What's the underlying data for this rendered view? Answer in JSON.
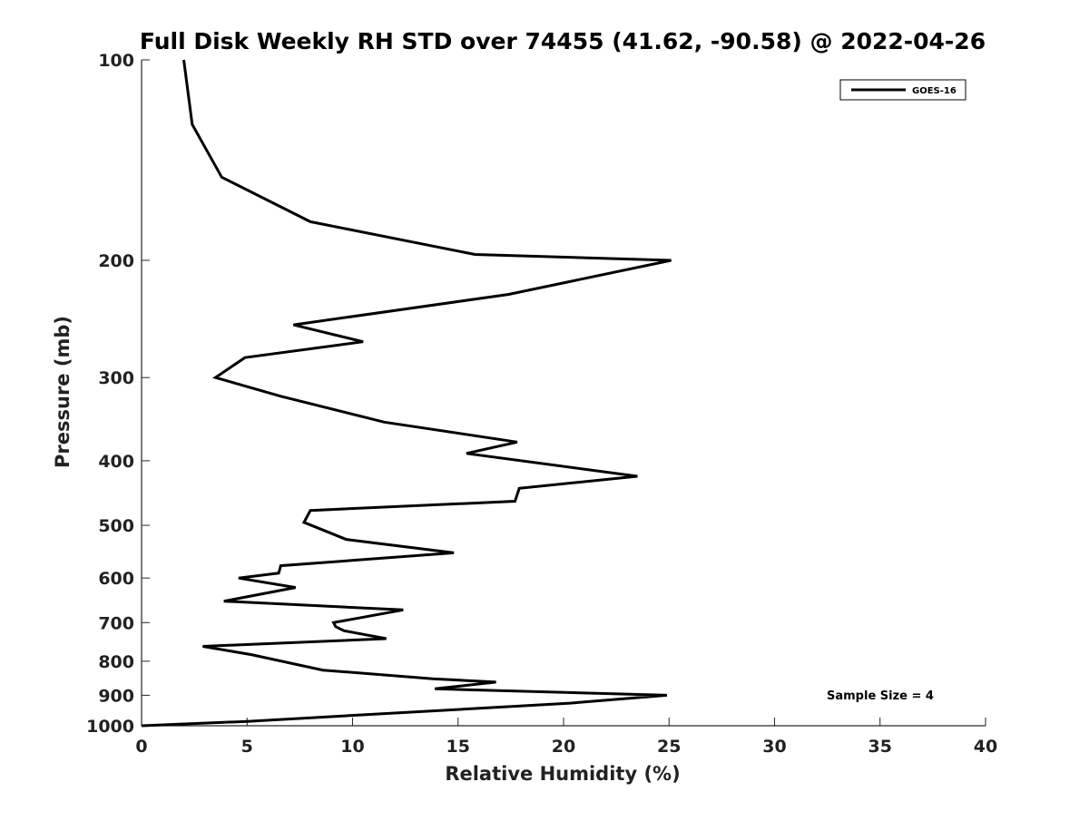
{
  "chart_data": {
    "type": "line",
    "title": "Full Disk Weekly RH STD over 74455 (41.62, -90.58) @ 2022-04-26",
    "xlabel": "Relative Humidity (%)",
    "ylabel": "Pressure (mb)",
    "xlim": [
      0,
      40
    ],
    "ylim": [
      1000,
      100
    ],
    "y_scale": "log",
    "y_inverted": true,
    "grid": false,
    "legend_position": "top-right",
    "x_ticks": [
      "0",
      "5",
      "10",
      "15",
      "20",
      "25",
      "30",
      "35",
      "40"
    ],
    "y_ticks": [
      "100",
      "200",
      "300",
      "400",
      "500",
      "600",
      "700",
      "800",
      "900",
      "1000"
    ],
    "annotation": "Sample Size = 4",
    "series": [
      {
        "name": "GOES-16",
        "color": "#000000",
        "x": [
          2.0,
          2.4,
          3.8,
          8.0,
          15.8,
          25.1,
          17.4,
          7.2,
          10.5,
          4.9,
          3.5,
          6.6,
          11.5,
          17.8,
          15.4,
          23.5,
          17.9,
          17.7,
          8.0,
          7.7,
          9.7,
          14.8,
          6.6,
          6.5,
          4.6,
          7.3,
          3.9,
          12.4,
          9.1,
          9.2,
          9.6,
          11.6,
          2.9,
          5.2,
          8.6,
          13.8,
          16.8,
          13.9,
          24.9,
          20.3,
          5.0,
          0.0
        ]
      }
    ],
    "y": [
      100,
      125,
      150,
      175,
      196,
      200,
      225,
      250,
      265,
      280,
      300,
      320,
      350,
      375,
      390,
      422,
      440,
      460,
      475,
      495,
      525,
      550,
      575,
      590,
      600,
      620,
      650,
      670,
      700,
      710,
      720,
      740,
      760,
      782,
      825,
      850,
      860,
      880,
      900,
      925,
      985,
      1000
    ]
  }
}
